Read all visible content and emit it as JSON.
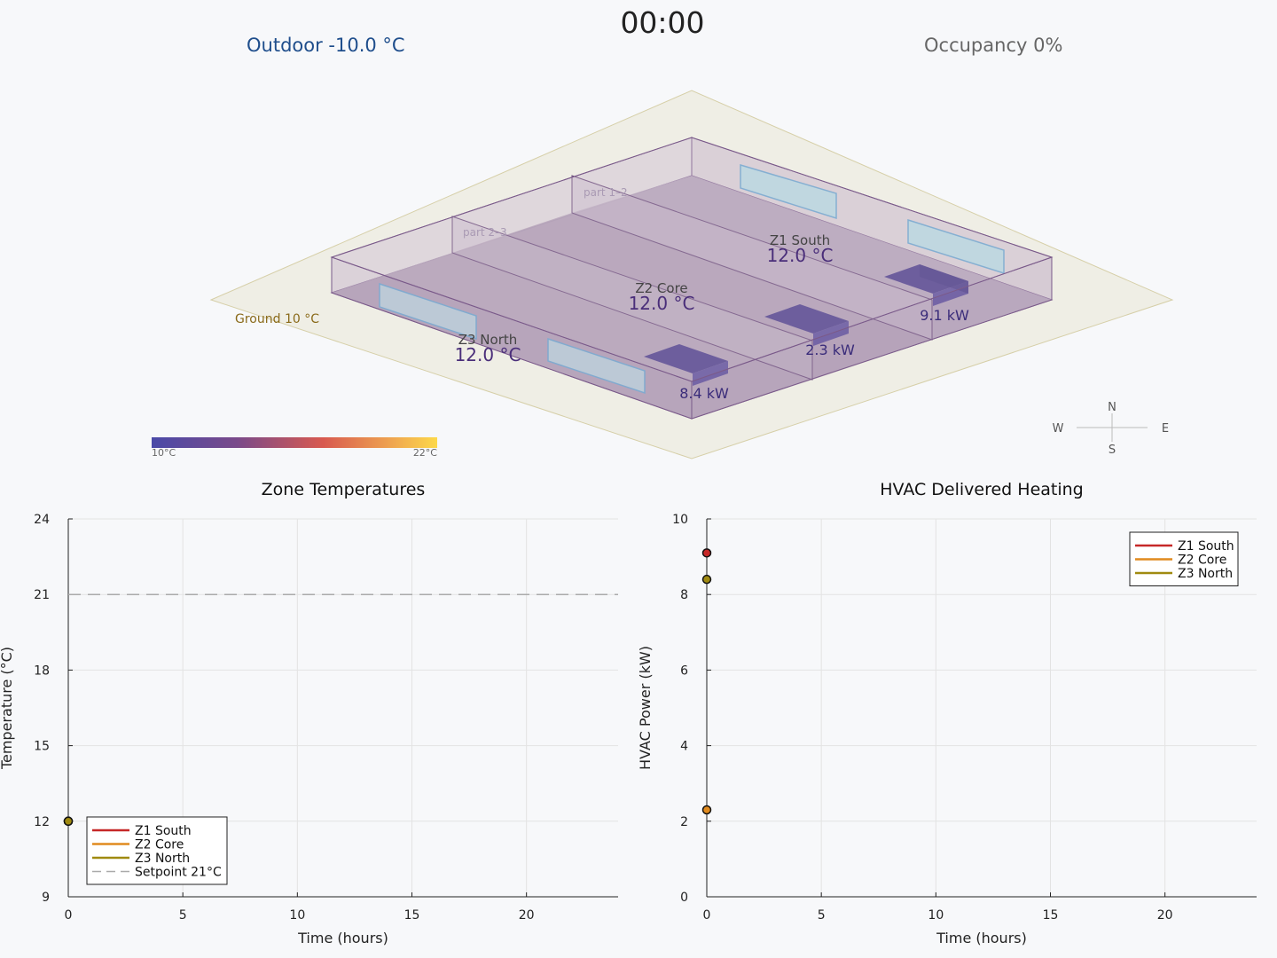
{
  "header": {
    "time": "00:00",
    "outdoor_label": "Outdoor  -10.0 °C",
    "occupancy_label": "Occupancy 0%"
  },
  "scene": {
    "ground_label": "Ground 10 °C",
    "partitions": [
      "part 1–2",
      "part 2–3"
    ],
    "zones": [
      {
        "name": "Z1 South",
        "temp": "12.0 °C",
        "power": "9.1 kW"
      },
      {
        "name": "Z2 Core",
        "temp": "12.0 °C",
        "power": "2.3 kW"
      },
      {
        "name": "Z3 North",
        "temp": "12.0 °C",
        "power": "8.4 kW"
      }
    ],
    "colorbar": {
      "min_label": "10°C",
      "max_label": "22°C",
      "low_color": "#4a4aa8",
      "high_color": "#fdd94a"
    },
    "compass": {
      "n": "N",
      "s": "S",
      "e": "E",
      "w": "W"
    }
  },
  "colors": {
    "z1": "#c62828",
    "z2": "#e08a1e",
    "z3": "#a08a10",
    "setpoint": "#aaaaaa",
    "zone_fill": "#b7a3bd",
    "heater": "#4a3a8a",
    "window": "#b9dbe3"
  },
  "chart_data": [
    {
      "type": "line",
      "title": "Zone Temperatures",
      "xlabel": "Time (hours)",
      "ylabel": "Temperature (°C)",
      "xlim": [
        0,
        24
      ],
      "ylim": [
        9,
        24
      ],
      "xticks": [
        0,
        5,
        10,
        15,
        20
      ],
      "yticks": [
        9,
        12,
        15,
        18,
        21,
        24
      ],
      "grid": true,
      "legend_position": "bottom-left",
      "series": [
        {
          "name": "Z1 South",
          "x": [
            0
          ],
          "y": [
            12.0
          ]
        },
        {
          "name": "Z2 Core",
          "x": [
            0
          ],
          "y": [
            12.0
          ]
        },
        {
          "name": "Z3 North",
          "x": [
            0
          ],
          "y": [
            12.0
          ]
        }
      ],
      "reference_lines": [
        {
          "name": "Setpoint 21°C",
          "y": 21
        }
      ]
    },
    {
      "type": "line",
      "title": "HVAC Delivered Heating",
      "xlabel": "Time (hours)",
      "ylabel": "HVAC Power (kW)",
      "xlim": [
        0,
        24
      ],
      "ylim": [
        0,
        10
      ],
      "xticks": [
        0,
        5,
        10,
        15,
        20
      ],
      "yticks": [
        0,
        2,
        4,
        6,
        8,
        10
      ],
      "grid": true,
      "legend_position": "top-right",
      "series": [
        {
          "name": "Z1 South",
          "x": [
            0
          ],
          "y": [
            9.1
          ]
        },
        {
          "name": "Z2 Core",
          "x": [
            0
          ],
          "y": [
            2.3
          ]
        },
        {
          "name": "Z3 North",
          "x": [
            0
          ],
          "y": [
            8.4
          ]
        }
      ]
    }
  ]
}
